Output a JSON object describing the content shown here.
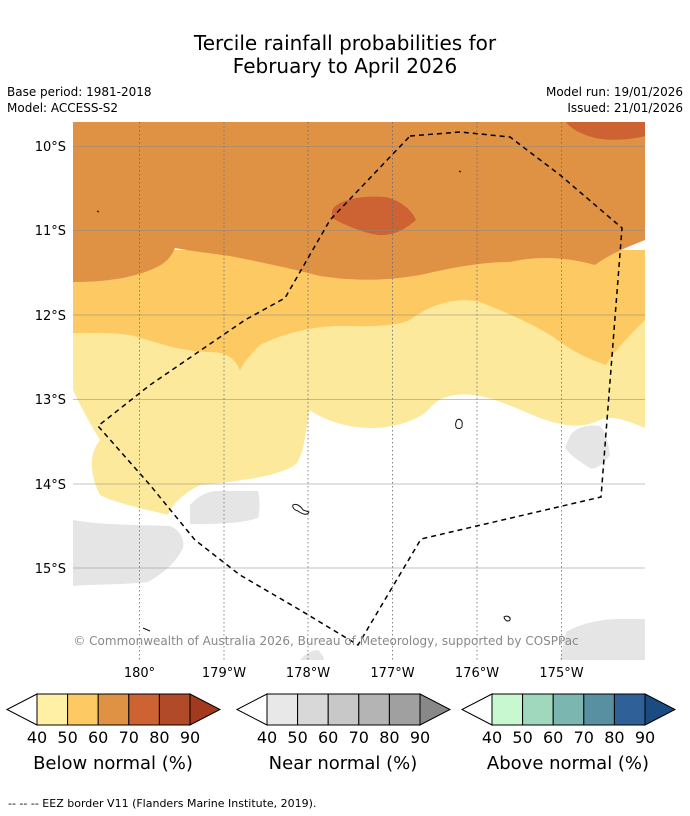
{
  "title": {
    "line1": "Tercile rainfall probabilities for",
    "line2": "February to April 2026"
  },
  "meta": {
    "base_period": "Base period: 1981-2018",
    "model": "Model: ACCESS-S2",
    "model_run": "Model run: 19/01/2026",
    "issued": "Issued: 21/01/2026"
  },
  "map": {
    "lat_labels": [
      "10°S",
      "11°S",
      "12°S",
      "13°S",
      "14°S",
      "15°S"
    ],
    "lon_labels": [
      "180°",
      "179°W",
      "178°W",
      "177°W",
      "176°W",
      "175°W"
    ],
    "copyright": "© Commonwealth of Australia 2026, Bureau of Meteorology, supported by COSPPac",
    "colors": {
      "below_50": "#fde99c",
      "below_60": "#fdc963",
      "below_70": "#e09244",
      "below_80": "#cd6232",
      "near_50": "#e5e5e5",
      "eez_border": "#000000"
    }
  },
  "colorbars": [
    {
      "label": "Below normal (%)",
      "ticks": [
        "40",
        "50",
        "60",
        "70",
        "80",
        "90"
      ],
      "colors": [
        "#fff0a5",
        "#fdc963",
        "#e09244",
        "#cd6232",
        "#b04a28",
        "#a33a20"
      ]
    },
    {
      "label": "Near normal (%)",
      "ticks": [
        "40",
        "50",
        "60",
        "70",
        "80",
        "90"
      ],
      "colors": [
        "#e8e8e8",
        "#d8d8d8",
        "#c8c8c8",
        "#b4b4b4",
        "#a0a0a0",
        "#888888"
      ]
    },
    {
      "label": "Above normal (%)",
      "ticks": [
        "40",
        "50",
        "60",
        "70",
        "80",
        "90"
      ],
      "colors": [
        "#c8f8cf",
        "#a0d8bd",
        "#7cb6b1",
        "#5890a1",
        "#2f6098",
        "#1a4c82"
      ]
    }
  ],
  "footer": "--  --  -- EEZ border V11 (Flanders Marine Institute, 2019)."
}
